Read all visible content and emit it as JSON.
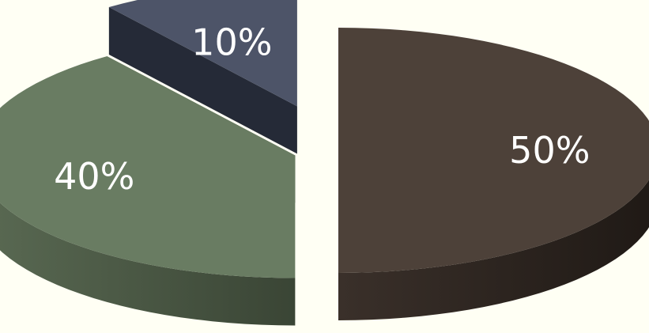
{
  "chart_data": {
    "type": "pie",
    "style": "3d-exploded",
    "categories": [
      "",
      "",
      ""
    ],
    "values": [
      50,
      40,
      10
    ],
    "data_labels": [
      "50%",
      "40%",
      "10%"
    ],
    "colors": [
      "#4d4139",
      "#697c62",
      "#4d5468"
    ],
    "side_colors": [
      "#2a211c",
      "#45513f",
      "#252a37"
    ],
    "exploded": [
      false,
      false,
      true
    ],
    "legend": "none",
    "title": ""
  }
}
